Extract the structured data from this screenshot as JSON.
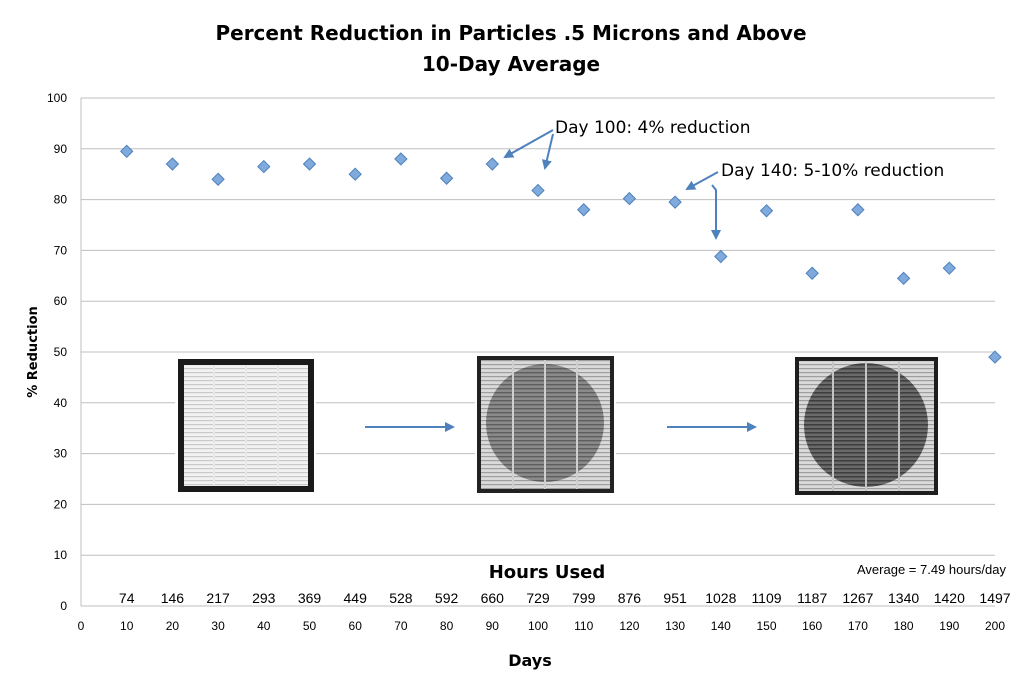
{
  "chart_data": {
    "type": "scatter",
    "title": "Percent Reduction in Particles .5 Microns and Above",
    "subtitle": "10-Day Average",
    "xlabel": "Days",
    "ylabel": "% Reduction",
    "xlim": [
      0,
      200
    ],
    "ylim": [
      0,
      100
    ],
    "x_ticks": [
      0,
      10,
      20,
      30,
      40,
      50,
      60,
      70,
      80,
      90,
      100,
      110,
      120,
      130,
      140,
      150,
      160,
      170,
      180,
      190,
      200
    ],
    "y_ticks": [
      0,
      10,
      20,
      30,
      40,
      50,
      60,
      70,
      80,
      90,
      100
    ],
    "grid": true,
    "marker_color": "#7faadb",
    "marker_edge_color": "#4f81bd",
    "arrow_color": "#4f81bd",
    "series": [
      {
        "points": [
          {
            "x": 10,
            "y": 89.5
          },
          {
            "x": 20,
            "y": 87
          },
          {
            "x": 30,
            "y": 84
          },
          {
            "x": 40,
            "y": 86.5
          },
          {
            "x": 50,
            "y": 87
          },
          {
            "x": 60,
            "y": 85
          },
          {
            "x": 70,
            "y": 88
          },
          {
            "x": 80,
            "y": 84.2
          },
          {
            "x": 90,
            "y": 87
          },
          {
            "x": 100,
            "y": 81.8
          },
          {
            "x": 110,
            "y": 78
          },
          {
            "x": 120,
            "y": 80.2
          },
          {
            "x": 130,
            "y": 79.5
          },
          {
            "x": 140,
            "y": 68.8
          },
          {
            "x": 150,
            "y": 77.8
          },
          {
            "x": 160,
            "y": 65.5
          },
          {
            "x": 170,
            "y": 78
          },
          {
            "x": 180,
            "y": 64.5
          },
          {
            "x": 190,
            "y": 66.5
          },
          {
            "x": 200,
            "y": 49
          }
        ]
      }
    ],
    "hours_used": {
      "title": "Hours Used",
      "days": [
        10,
        20,
        30,
        40,
        50,
        60,
        70,
        80,
        90,
        100,
        110,
        120,
        130,
        140,
        150,
        160,
        170,
        180,
        190,
        200
      ],
      "values": [
        "74",
        "146",
        "217",
        "293",
        "369",
        "449",
        "528",
        "592",
        "660",
        "729",
        "799",
        "876",
        "951",
        "1028",
        "1109",
        "1187",
        "1267",
        "1340",
        "1420",
        "1497"
      ]
    },
    "average_note": "Average = 7.49 hours/day",
    "annotations": [
      {
        "text": "Day 100: 4% reduction",
        "points_to_days": [
          90,
          100
        ]
      },
      {
        "text": "Day 140: 5-10% reduction",
        "points_to_days": [
          130,
          140
        ]
      }
    ],
    "filter_images": [
      "clean-filter",
      "partly-dirty-filter",
      "dirty-filter"
    ]
  }
}
